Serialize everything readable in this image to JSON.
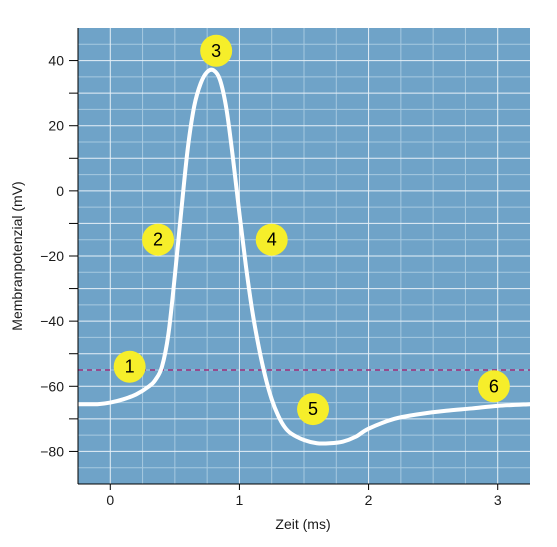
{
  "chart_data": {
    "type": "line",
    "xlabel": "Zeit (ms)",
    "ylabel": "Membranpotenzial (mV)",
    "xlim": [
      -0.25,
      3.25
    ],
    "ylim": [
      -90,
      50
    ],
    "x_ticks": [
      0,
      1,
      2,
      3
    ],
    "x_tick_labels": [
      "0",
      "1",
      "2",
      "3"
    ],
    "y_ticks": [
      40,
      20,
      0,
      -20,
      -40,
      -60,
      -80
    ],
    "y_tick_labels": [
      "40",
      "20",
      "0",
      "−20",
      "−40",
      "−60",
      "−80"
    ],
    "grid": true,
    "threshold": {
      "y": -55,
      "color": "#a0307a",
      "style": "dashed"
    },
    "series": [
      {
        "color": "#ffffff",
        "x": [
          -0.25,
          -0.1,
          0.0,
          0.1,
          0.2,
          0.3,
          0.35,
          0.4,
          0.45,
          0.5,
          0.55,
          0.6,
          0.65,
          0.7,
          0.75,
          0.8,
          0.85,
          0.9,
          0.95,
          1.0,
          1.05,
          1.1,
          1.15,
          1.2,
          1.25,
          1.3,
          1.35,
          1.4,
          1.5,
          1.6,
          1.7,
          1.8,
          1.9,
          2.0,
          2.2,
          2.4,
          2.6,
          2.8,
          3.0,
          3.25
        ],
        "y": [
          -65.5,
          -65.5,
          -65,
          -64,
          -62.5,
          -60,
          -58,
          -54,
          -44,
          -26,
          -6,
          13,
          26,
          33,
          36.5,
          37,
          34,
          25,
          10,
          -7,
          -23,
          -37,
          -48,
          -57,
          -64,
          -69,
          -72.5,
          -74.5,
          -76.5,
          -77.5,
          -77.5,
          -77,
          -75.5,
          -73,
          -70,
          -68.5,
          -67.5,
          -66.8,
          -66,
          -65.5
        ]
      }
    ],
    "annotations": [
      {
        "label": "1",
        "x": 0.15,
        "y": -54
      },
      {
        "label": "2",
        "x": 0.37,
        "y": -15
      },
      {
        "label": "3",
        "x": 0.82,
        "y": 43
      },
      {
        "label": "4",
        "x": 1.25,
        "y": -15
      },
      {
        "label": "5",
        "x": 1.57,
        "y": -67
      },
      {
        "label": "6",
        "x": 2.97,
        "y": -60
      }
    ],
    "colors": {
      "plot_background": "#6fa3c8",
      "major_grid": "#e6f0f7",
      "minor_grid": "#a6c9e0",
      "marker_fill": "#f6ee2a"
    }
  }
}
